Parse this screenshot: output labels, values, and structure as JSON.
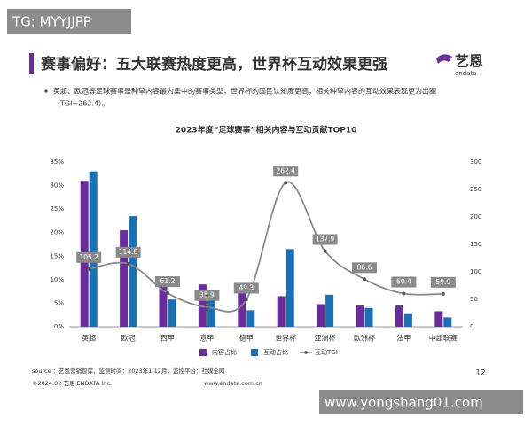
{
  "watermarks": {
    "top": "TG: MYYJJPP",
    "bottom": "www.yongshang01.com"
  },
  "slide": {
    "title": "赛事偏好：五大联赛热度更高，世界杯互动效果更强",
    "logo": "艺恩",
    "logo_sub": "endata",
    "bullet": [
      "英超、欧冠等足球赛事是种草内容最为集中的赛事类型，世界杯的国民认知度更高，相关种草内容的互动效果表现更为出圈",
      "（TGI=262.4）。"
    ],
    "source": "source ：艺恩营销智库，监测时间：2023年1-12月，监控平台：社媒全网",
    "copyright": "©2024.02 艺恩 ENDATA Inc.",
    "site": "www.endata.com.cn",
    "page": "12"
  },
  "chart_data": {
    "type": "bar-line",
    "title": "2023年度“足球赛事”相关内容与互动贡献TOP10",
    "categories": [
      "英超",
      "欧冠",
      "西甲",
      "意甲",
      "德甲",
      "世界杯",
      "亚洲杯",
      "欧洲杯",
      "法甲",
      "中超联赛"
    ],
    "series": [
      {
        "name": "内容占比",
        "color": "#6a2c9c",
        "values": [
          31,
          20.5,
          8.5,
          9,
          7.5,
          6.5,
          4.8,
          4.5,
          4.5,
          3.3
        ]
      },
      {
        "name": "互动占比",
        "color": "#1a6fb5",
        "values": [
          33,
          23.5,
          5.8,
          7,
          3.5,
          16.5,
          6.8,
          4,
          2.7,
          2
        ]
      },
      {
        "name": "互动TGI",
        "color": "#8a8a8a",
        "axis": "y2",
        "values": [
          105.2,
          114.8,
          61.2,
          35.9,
          49.3,
          262.4,
          137.9,
          86.6,
          60.4,
          59.9
        ]
      }
    ],
    "ylim": [
      0,
      35
    ],
    "yticks": [
      {
        "value": 0,
        "label": "0%"
      },
      {
        "value": 5,
        "label": "5%"
      },
      {
        "value": 10,
        "label": "10%"
      },
      {
        "value": 15,
        "label": "15%"
      },
      {
        "value": 20,
        "label": "20%"
      },
      {
        "value": 25,
        "label": "25%"
      },
      {
        "value": 30,
        "label": "30%"
      },
      {
        "value": 35,
        "label": "35%"
      }
    ],
    "y2lim": [
      0,
      300
    ],
    "y2ticks": [
      0,
      50,
      100,
      150,
      200,
      250,
      300
    ],
    "grid": false
  }
}
